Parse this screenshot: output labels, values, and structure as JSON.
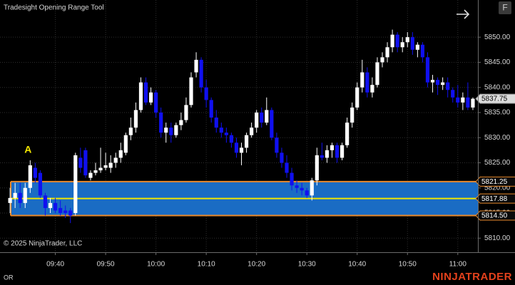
{
  "chart_data": {
    "type": "candlestick",
    "title": "Tradesight Opening Range Tool",
    "copyright": "© 2025 NinjaTrader, LLC",
    "panel_label": "OR",
    "brand": "NINJATRADER",
    "button": "F",
    "x": [
      "09:31",
      "09:32",
      "09:33",
      "09:34",
      "09:35",
      "09:36",
      "09:37",
      "09:38",
      "09:39",
      "09:40",
      "09:41",
      "09:42",
      "09:43",
      "09:44",
      "09:45",
      "09:46",
      "09:47",
      "09:48",
      "09:49",
      "09:50",
      "09:51",
      "09:52",
      "09:53",
      "09:54",
      "09:55",
      "09:56",
      "09:57",
      "09:58",
      "09:59",
      "10:00",
      "10:01",
      "10:02",
      "10:03",
      "10:04",
      "10:05",
      "10:06",
      "10:07",
      "10:08",
      "10:09",
      "10:10",
      "10:11",
      "10:12",
      "10:13",
      "10:14",
      "10:15",
      "10:16",
      "10:17",
      "10:18",
      "10:19",
      "10:20",
      "10:21",
      "10:22",
      "10:23",
      "10:24",
      "10:25",
      "10:26",
      "10:27",
      "10:28",
      "10:29",
      "10:30",
      "10:31",
      "10:32",
      "10:33",
      "10:34",
      "10:35",
      "10:36",
      "10:37",
      "10:38",
      "10:39",
      "10:40",
      "10:41",
      "10:42",
      "10:43",
      "10:44",
      "10:45",
      "10:46",
      "10:47",
      "10:48",
      "10:49",
      "10:50",
      "10:51",
      "10:52",
      "10:53",
      "10:54",
      "10:55",
      "10:56",
      "10:57",
      "10:58",
      "10:59",
      "11:00",
      "11:01",
      "11:02",
      "11:03"
    ],
    "open": [
      5817,
      5818,
      5819,
      5817,
      5820,
      5824,
      5823,
      5818.5,
      5816,
      5817,
      5816,
      5815.5,
      5815.5,
      5815,
      5826,
      5827.5,
      5822,
      5823,
      5823.5,
      5824,
      5824,
      5825,
      5826,
      5827,
      5830.5,
      5832,
      5835.5,
      5841,
      5837,
      5839,
      5835,
      5831,
      5832,
      5830.5,
      5832.5,
      5833.5,
      5836.5,
      5843,
      5845.5,
      5840,
      5837.5,
      5834,
      5832,
      5831,
      5830.5,
      5829,
      5827,
      5828,
      5830.5,
      5832,
      5835,
      5833,
      5835.5,
      5830,
      5827,
      5825,
      5823,
      5820.5,
      5820,
      5819.5,
      5818.5,
      5821.5,
      5826.5,
      5826,
      5827.5,
      5828.5,
      5826,
      5828.5,
      5833,
      5836,
      5840,
      5843,
      5839,
      5840.5,
      5845,
      5846,
      5848,
      5850.5,
      5848,
      5849,
      5850,
      5847.5,
      5848.5,
      5846,
      5841,
      5841.5,
      5840.5,
      5841,
      5839.5,
      5838,
      5837,
      5838,
      5836
    ],
    "high": [
      5820,
      5821,
      5821,
      5821,
      5825.5,
      5825,
      5823.5,
      5819,
      5818,
      5818,
      5817.5,
      5816.5,
      5816,
      5827,
      5828,
      5828,
      5823.5,
      5825,
      5828,
      5827,
      5826.5,
      5827,
      5829,
      5831,
      5834,
      5837,
      5842,
      5842,
      5840,
      5839.5,
      5836,
      5833,
      5833,
      5833,
      5835,
      5838,
      5843,
      5847,
      5846,
      5841.5,
      5838,
      5835.5,
      5833,
      5832,
      5831,
      5830,
      5829,
      5831,
      5833,
      5835.5,
      5836,
      5838,
      5836,
      5831,
      5828,
      5826.5,
      5824,
      5821.5,
      5821,
      5820,
      5822,
      5828,
      5829,
      5828.5,
      5829,
      5829,
      5829,
      5834,
      5837,
      5841,
      5845.5,
      5844,
      5842,
      5846,
      5847,
      5849,
      5851.5,
      5851,
      5850,
      5851,
      5851,
      5849,
      5849,
      5847,
      5842.5,
      5842,
      5842,
      5842,
      5840,
      5840.5,
      5839,
      5841,
      5838
    ],
    "low": [
      5815,
      5816,
      5816,
      5816,
      5819,
      5821,
      5818,
      5814.5,
      5815,
      5815,
      5814.5,
      5814,
      5813,
      5814.5,
      5823,
      5822,
      5821.5,
      5822.5,
      5823,
      5823.5,
      5823,
      5824,
      5825,
      5826.5,
      5829.5,
      5831,
      5835,
      5836.5,
      5836.5,
      5834,
      5830,
      5829,
      5829,
      5830,
      5831.5,
      5833,
      5836,
      5842,
      5839,
      5836,
      5833,
      5831,
      5830,
      5829,
      5828,
      5826,
      5824.5,
      5827,
      5830,
      5831,
      5832,
      5832.5,
      5829.5,
      5826,
      5824,
      5822,
      5819.5,
      5819,
      5818.5,
      5818,
      5817.5,
      5820.5,
      5825.5,
      5825,
      5826,
      5825,
      5825.5,
      5828,
      5832,
      5835.5,
      5839,
      5838,
      5838,
      5840,
      5844,
      5845,
      5847,
      5847,
      5847,
      5848,
      5846.5,
      5846,
      5845,
      5840,
      5839,
      5838.5,
      5839.5,
      5838,
      5837,
      5836,
      5835.5,
      5835.5,
      5835.5
    ],
    "close": [
      5818,
      5819,
      5817,
      5820,
      5824.5,
      5822,
      5818.5,
      5816,
      5817,
      5815.5,
      5815,
      5815,
      5814.5,
      5826.5,
      5824,
      5822.5,
      5823,
      5823.5,
      5824,
      5824.5,
      5825,
      5826,
      5827.5,
      5830.5,
      5832,
      5835.5,
      5841,
      5837,
      5839,
      5835,
      5831,
      5832,
      5830.5,
      5832.5,
      5833.5,
      5836.5,
      5842,
      5845.5,
      5840,
      5837.5,
      5834,
      5832,
      5831,
      5830.5,
      5829,
      5827,
      5828,
      5830.5,
      5832,
      5835,
      5833,
      5835.5,
      5830,
      5827,
      5825,
      5823,
      5820.5,
      5820,
      5819.5,
      5818.5,
      5821.5,
      5826.5,
      5826,
      5827.5,
      5828.5,
      5826,
      5828.5,
      5833,
      5836,
      5840,
      5843,
      5839,
      5840.5,
      5845,
      5846,
      5848,
      5850.5,
      5848,
      5849,
      5850,
      5847.5,
      5848.5,
      5846,
      5841,
      5841.5,
      5840.5,
      5841,
      5839.5,
      5838,
      5837,
      5838,
      5836,
      5837.75
    ],
    "up_color": "#ffffff",
    "down_color": "#1010f0",
    "xlim": [
      "09:29",
      "11:04"
    ],
    "xticks": [
      "09:40",
      "09:50",
      "10:00",
      "10:10",
      "10:20",
      "10:30",
      "10:40",
      "10:50",
      "11:00"
    ],
    "ylim": [
      5807.2,
      5857.4
    ],
    "yticks": [
      {
        "value": 5810,
        "label": "5810.00"
      },
      {
        "value": 5815,
        "label": "5815.00"
      },
      {
        "value": 5820,
        "label": "5820.00"
      },
      {
        "value": 5825,
        "label": "5825.00"
      },
      {
        "value": 5830,
        "label": "5830.00"
      },
      {
        "value": 5835,
        "label": "5835.00"
      },
      {
        "value": 5840,
        "label": "5840.00"
      },
      {
        "value": 5845,
        "label": "5845.00"
      },
      {
        "value": 5850,
        "label": "5850.00"
      }
    ],
    "grid": true,
    "opening_range": {
      "high": 5821.25,
      "mid": 5817.88,
      "low": {
        "value": 5814.5,
        "label": "5814.50"
      },
      "band_color": "#1a6cc4",
      "border_color": "#e8892c",
      "mid_color": "#f2e600"
    },
    "annotations": [
      {
        "text": "A",
        "x": "09:35",
        "color": "#f2e600"
      }
    ]
  }
}
